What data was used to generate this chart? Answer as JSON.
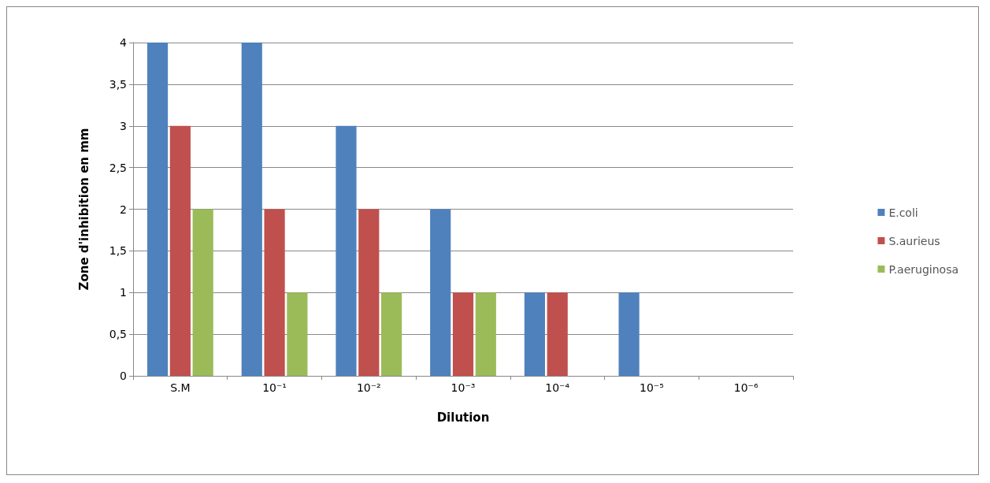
{
  "chart_data": {
    "type": "bar",
    "xlabel": "Dilution",
    "ylabel": "Zone d'inhibition en mm",
    "categories": [
      "S.M",
      "10⁻¹",
      "10⁻²",
      "10⁻³",
      "10⁻⁴",
      "10⁻⁵",
      "10⁻⁶"
    ],
    "series": [
      {
        "name": "E.coli",
        "color": "#4f81bd",
        "values": [
          4,
          4,
          3,
          2,
          1,
          1,
          0
        ]
      },
      {
        "name": "S.aurieus",
        "color": "#c0504d",
        "values": [
          3,
          2,
          2,
          1,
          1,
          0,
          0
        ]
      },
      {
        "name": "P.aeruginosa",
        "color": "#9bbb59",
        "values": [
          2,
          1,
          1,
          1,
          0,
          0,
          0
        ]
      }
    ],
    "ylim": [
      0,
      4
    ],
    "yticks": [
      0,
      {
        "value": 0.5,
        "label": "0,5"
      },
      1,
      {
        "value": 1.5,
        "label": "1,5"
      },
      2,
      {
        "value": 2.5,
        "label": "2,5"
      },
      3,
      {
        "value": 3.5,
        "label": "3,5"
      },
      4
    ],
    "grid": "y",
    "legend": "right"
  }
}
